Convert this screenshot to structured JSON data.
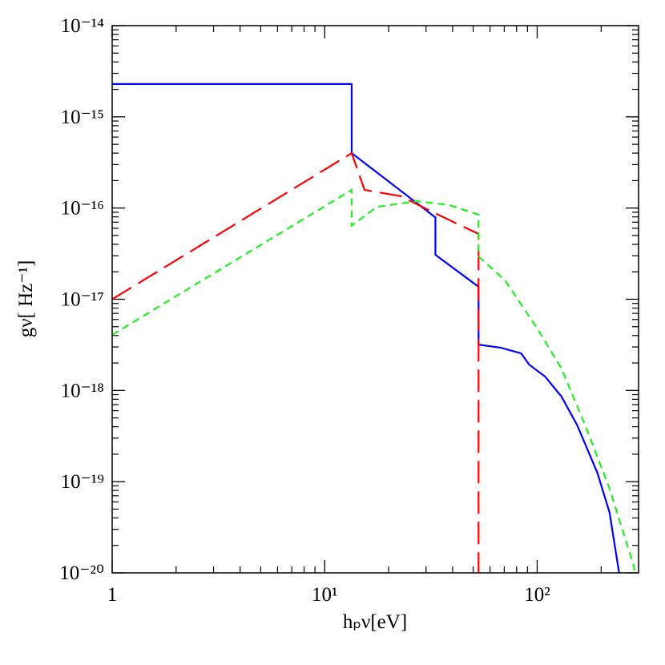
{
  "chart_data": {
    "type": "line",
    "x_label": "hₚν[eV]",
    "y_label": "gν[ Hz⁻¹]",
    "log_x": true,
    "log_y": true,
    "xlim": [
      1,
      300
    ],
    "ylim": [
      1e-20,
      1e-14
    ],
    "xticks": [
      1,
      {
        "value": 10,
        "label": "10¹"
      },
      {
        "value": 100,
        "label": "10²"
      }
    ],
    "yticks": [
      {
        "value": 1e-20,
        "label": "10⁻²⁰"
      },
      {
        "value": 1e-19,
        "label": "10⁻¹⁹"
      },
      {
        "value": 1e-18,
        "label": "10⁻¹⁸"
      },
      {
        "value": 1e-17,
        "label": "10⁻¹⁷"
      },
      {
        "value": 1e-16,
        "label": "10⁻¹⁶"
      },
      {
        "value": 1e-15,
        "label": "10⁻¹⁵"
      },
      {
        "value": 1e-14,
        "label": "10⁻¹⁴"
      }
    ],
    "series": [
      {
        "color": "#0000ff",
        "dash": "solid",
        "x": [
          1,
          13.4,
          13.4,
          33.2,
          33.2,
          53,
          53,
          67.6,
          84.1,
          91.7,
          109,
          130,
          154,
          192,
          219,
          243
        ],
        "values": [
          2.29e-15,
          2.29e-15,
          4e-16,
          7.9e-17,
          3.07e-17,
          1.37e-17,
          3.18e-18,
          2.94e-18,
          2.55e-18,
          1.92e-18,
          1.42e-18,
          8.6e-19,
          4.2e-19,
          1.25e-19,
          4.6e-20,
          1e-20
        ]
      },
      {
        "color": "#ff0000",
        "dash": "long",
        "x": [
          1,
          13.4,
          15.4,
          22.8,
          32.3,
          53,
          53
        ],
        "values": [
          1e-17,
          4e-16,
          1.58e-16,
          1.35e-16,
          9e-17,
          5.2e-17,
          1e-20
        ]
      },
      {
        "color": "#22ee22",
        "dash": "short",
        "x": [
          1,
          13.4,
          13.4,
          17.6,
          27.2,
          38.5,
          53,
          53,
          70.6,
          100,
          130,
          168,
          219,
          284,
          289
        ],
        "values": [
          4.07e-18,
          1.58e-16,
          6.4e-17,
          1.03e-16,
          1.19e-16,
          1.08e-16,
          8.45e-17,
          2.95e-17,
          1.61e-17,
          4.8e-18,
          1.74e-18,
          4.2e-19,
          8.4e-20,
          1.22e-20,
          1e-20
        ]
      }
    ]
  }
}
